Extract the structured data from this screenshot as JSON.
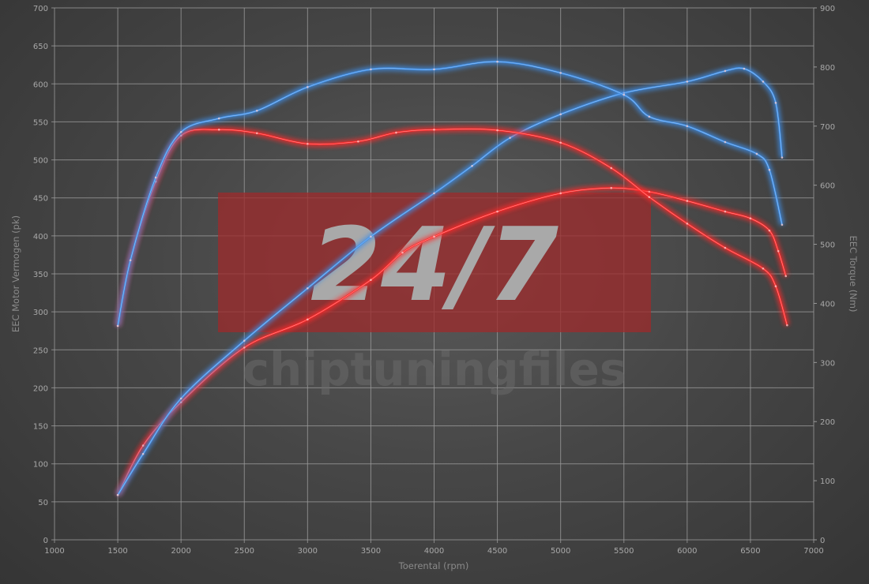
{
  "chart_data": {
    "type": "line",
    "xlabel": "Toerental (rpm)",
    "ylabel_left": "EEC Motor Vermogen (pk)",
    "ylabel_right": "EEC Torque (Nm)",
    "xlim": [
      1000,
      7000
    ],
    "ylim_left": [
      0,
      700
    ],
    "ylim_right": [
      0,
      900
    ],
    "x_ticks": [
      1000,
      1500,
      2000,
      2500,
      3000,
      3500,
      4000,
      4500,
      5000,
      5500,
      6000,
      6500,
      7000
    ],
    "y_ticks_left": [
      0,
      50,
      100,
      150,
      200,
      250,
      300,
      350,
      400,
      450,
      500,
      550,
      600,
      650,
      700
    ],
    "y_ticks_right": [
      0,
      100,
      200,
      300,
      400,
      500,
      600,
      700,
      800,
      900
    ],
    "grid": true,
    "watermark": {
      "logo": "24/7",
      "text": "chiptuningfiles",
      "color": "#9e2a2b"
    },
    "series": [
      {
        "axis": "left",
        "color": "#ff2a2a",
        "points": [
          [
            1500,
            59
          ],
          [
            1700,
            124
          ],
          [
            2000,
            181
          ],
          [
            2500,
            253
          ],
          [
            3000,
            290
          ],
          [
            3500,
            342
          ],
          [
            3750,
            378
          ],
          [
            4000,
            399
          ],
          [
            4500,
            432
          ],
          [
            5000,
            456
          ],
          [
            5400,
            463
          ],
          [
            5700,
            458
          ],
          [
            6000,
            446
          ],
          [
            6300,
            432
          ],
          [
            6500,
            423
          ],
          [
            6650,
            407
          ],
          [
            6720,
            380
          ],
          [
            6780,
            347
          ]
        ]
      },
      {
        "axis": "left",
        "color": "#3f8fe8",
        "points": [
          [
            1500,
            59
          ],
          [
            1700,
            113
          ],
          [
            2000,
            186
          ],
          [
            2500,
            262
          ],
          [
            3000,
            331
          ],
          [
            3500,
            399
          ],
          [
            4000,
            456
          ],
          [
            4300,
            492
          ],
          [
            4600,
            529
          ],
          [
            5000,
            560
          ],
          [
            5500,
            588
          ],
          [
            6000,
            603
          ],
          [
            6300,
            617
          ],
          [
            6450,
            620
          ],
          [
            6600,
            603
          ],
          [
            6700,
            575
          ],
          [
            6750,
            503
          ]
        ]
      },
      {
        "axis": "right",
        "color": "#ff2a2a",
        "points": [
          [
            1500,
            362
          ],
          [
            1600,
            473
          ],
          [
            1800,
            606
          ],
          [
            2000,
            684
          ],
          [
            2300,
            694
          ],
          [
            2600,
            688
          ],
          [
            3000,
            670
          ],
          [
            3400,
            674
          ],
          [
            3700,
            689
          ],
          [
            4000,
            694
          ],
          [
            4500,
            693
          ],
          [
            5000,
            672
          ],
          [
            5400,
            629
          ],
          [
            5700,
            580
          ],
          [
            6000,
            535
          ],
          [
            6300,
            494
          ],
          [
            6600,
            459
          ],
          [
            6700,
            429
          ],
          [
            6790,
            363
          ]
        ]
      },
      {
        "axis": "right",
        "color": "#3f8fe8",
        "points": [
          [
            1500,
            362
          ],
          [
            1600,
            473
          ],
          [
            1800,
            613
          ],
          [
            2000,
            690
          ],
          [
            2300,
            713
          ],
          [
            2600,
            726
          ],
          [
            3000,
            766
          ],
          [
            3500,
            796
          ],
          [
            4000,
            796
          ],
          [
            4500,
            809
          ],
          [
            5000,
            790
          ],
          [
            5500,
            753
          ],
          [
            5700,
            716
          ],
          [
            6000,
            700
          ],
          [
            6300,
            673
          ],
          [
            6550,
            653
          ],
          [
            6650,
            626
          ],
          [
            6750,
            533
          ]
        ]
      }
    ]
  }
}
